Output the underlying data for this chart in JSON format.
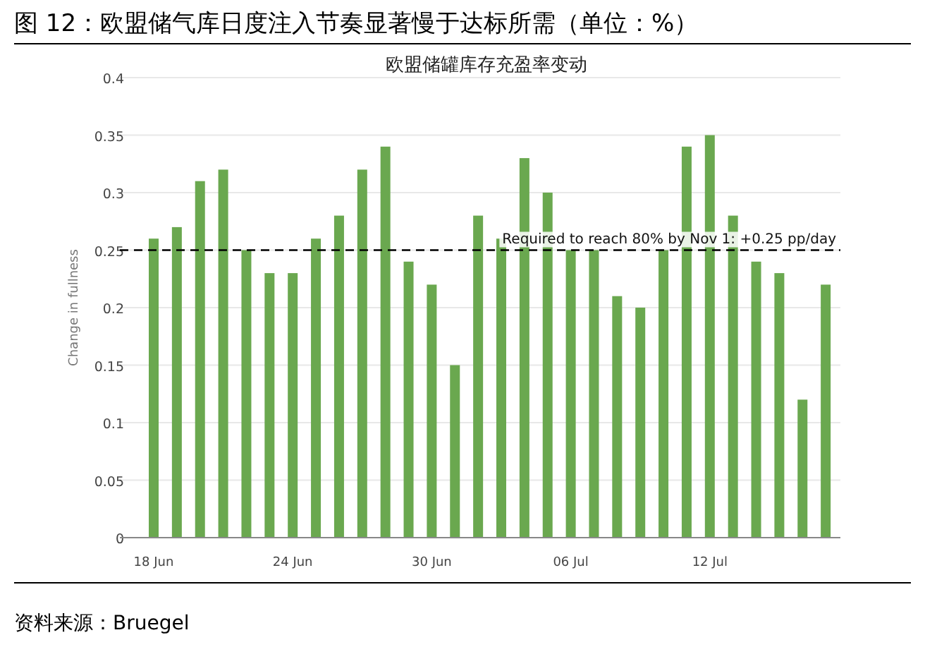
{
  "chart_data": {
    "type": "bar",
    "title": "图 12：欧盟储气库日度注入节奏显著慢于达标所需（单位：%）",
    "subtitle": "欧盟储罐库存充盈率变动",
    "ylabel": "Change in fullness",
    "categories": [
      "18 Jun",
      null,
      null,
      null,
      null,
      null,
      "24 Jun",
      null,
      null,
      null,
      null,
      null,
      "30 Jun",
      null,
      null,
      null,
      null,
      null,
      "06 Jul",
      null,
      null,
      null,
      null,
      null,
      "12 Jul",
      null,
      null,
      null,
      null,
      null
    ],
    "values": [
      0.26,
      0.27,
      0.31,
      0.32,
      0.25,
      0.23,
      0.23,
      0.26,
      0.28,
      0.32,
      0.34,
      0.24,
      0.22,
      0.15,
      0.28,
      0.26,
      0.33,
      0.3,
      0.25,
      0.25,
      0.21,
      0.2,
      0.25,
      0.34,
      0.35,
      0.28,
      0.24,
      0.23,
      0.12,
      0.22
    ],
    "color": "#6aa84f",
    "ylim": [
      0,
      0.4
    ],
    "yticks": [
      0,
      0.05,
      0.1,
      0.15,
      0.2,
      0.25,
      0.3,
      0.35,
      0.4
    ],
    "grid": "y",
    "ref_lines": [
      {
        "axis": "y",
        "value": 0.25,
        "label": "Required to reach 80% by Nov 1: +0.25 pp/day",
        "line_style": "dashed",
        "color": "#000000"
      }
    ],
    "annotations": [
      "资料来源：Bruegel"
    ]
  }
}
